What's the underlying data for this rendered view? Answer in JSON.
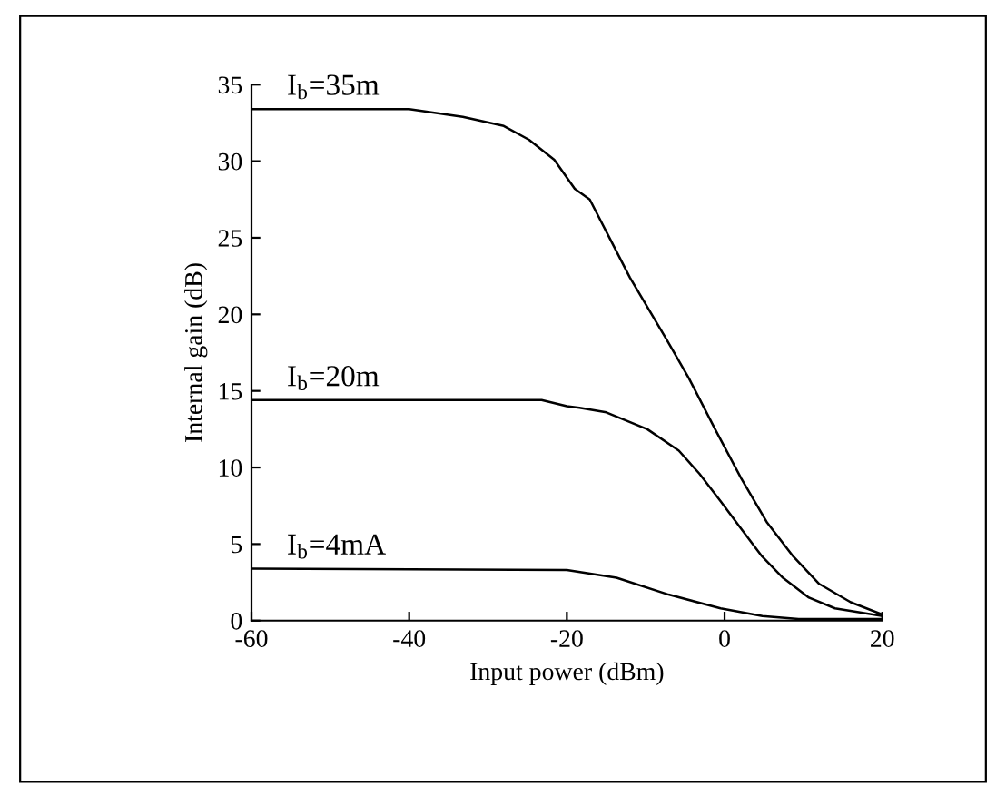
{
  "chart_data": {
    "type": "line",
    "xlabel": "Input power (dBm)",
    "ylabel": "Internal gain (dB)",
    "xlim": [
      -60,
      20
    ],
    "ylim": [
      0,
      35
    ],
    "xticks": [
      -60,
      -40,
      -20,
      0,
      20
    ],
    "yticks": [
      0,
      5,
      10,
      15,
      20,
      25,
      30,
      35
    ],
    "grid": false,
    "legend": false,
    "marker": "none",
    "line_style": "solid",
    "series": [
      {
        "name": "I$_{b}$=35m",
        "color": "#000000",
        "x": [
          -60,
          -40,
          -33.2,
          -28,
          -24.8,
          -21.6,
          -19,
          -17.1,
          -14.5,
          -12,
          -7.4,
          -4.5,
          -1.2,
          2.1,
          5.4,
          8.7,
          12,
          16,
          20
        ],
        "values": [
          33.4,
          33.4,
          32.9,
          32.3,
          31.4,
          30.1,
          28.2,
          27.5,
          24.9,
          22.4,
          18.4,
          15.8,
          12.5,
          9.3,
          6.4,
          4.2,
          2.4,
          1.2,
          0.4
        ]
      },
      {
        "name": "I$_{b}$=20m",
        "color": "#000000",
        "x": [
          -60,
          -23.2,
          -20,
          -18.4,
          -15,
          -9.8,
          -5.8,
          -3.2,
          -0.5,
          2.1,
          4.75,
          7.4,
          10.7,
          14,
          20
        ],
        "values": [
          14.4,
          14.4,
          14.0,
          13.9,
          13.6,
          12.5,
          11.1,
          9.6,
          7.8,
          6.0,
          4.2,
          2.8,
          1.5,
          0.8,
          0.3
        ]
      },
      {
        "name": "I$_{b}$=4mA",
        "color": "#000000",
        "x": [
          -60,
          -20,
          -13.7,
          -7.1,
          -0.5,
          4.8,
          9.4,
          20
        ],
        "values": [
          3.4,
          3.3,
          2.8,
          1.7,
          0.8,
          0.3,
          0.1,
          0.1
        ]
      }
    ]
  }
}
